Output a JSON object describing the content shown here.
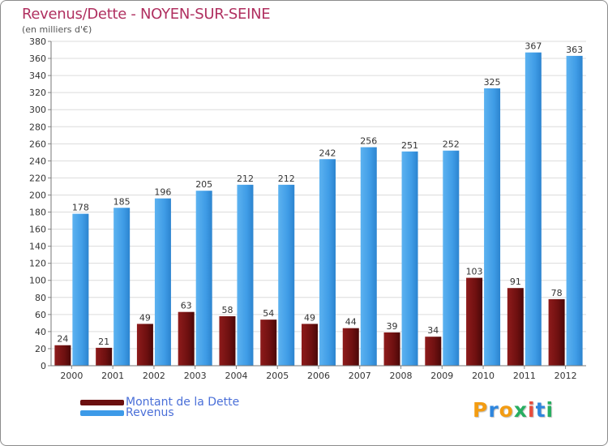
{
  "title": "Revenus/Dette - NOYEN-SUR-SEINE",
  "subtitle": "(en milliers d'€)",
  "legend": [
    {
      "label": "Montant de la Dette",
      "color": "#6b0f0f"
    },
    {
      "label": "Revenus",
      "color": "#3d9ae8"
    }
  ],
  "brand": {
    "text": "Proxiti",
    "letters": [
      "P",
      "r",
      "o",
      "x",
      "i",
      "t",
      "i"
    ],
    "colors": [
      "#f39c12",
      "#2e86de",
      "#f39c12",
      "#27ae60",
      "#e74c3c",
      "#2e86de",
      "#27ae60"
    ]
  },
  "chart_data": {
    "type": "bar",
    "title": "Revenus/Dette - NOYEN-SUR-SEINE",
    "subtitle": "(en milliers d'€)",
    "categories": [
      "2000",
      "2001",
      "2002",
      "2003",
      "2004",
      "2005",
      "2006",
      "2007",
      "2008",
      "2009",
      "2010",
      "2011",
      "2012"
    ],
    "series": [
      {
        "name": "Montant de la Dette",
        "color": "#7a1414",
        "values": [
          24,
          21,
          49,
          63,
          58,
          54,
          49,
          44,
          39,
          34,
          103,
          91,
          78
        ]
      },
      {
        "name": "Revenus",
        "color": "#4ba3ea",
        "values": [
          178,
          185,
          196,
          205,
          212,
          212,
          242,
          256,
          251,
          252,
          325,
          367,
          363
        ]
      }
    ],
    "ylim": [
      0,
      380
    ],
    "ytick_step": 20,
    "grid": true,
    "legend_position": "bottom-left"
  }
}
